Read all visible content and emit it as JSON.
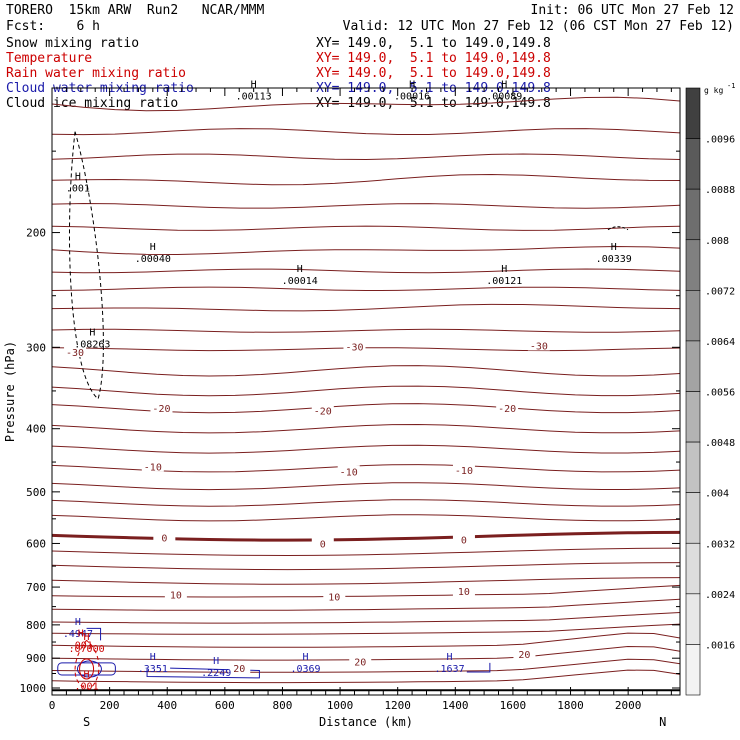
{
  "header": {
    "model": "TORERO",
    "grid": "15km ARW",
    "run": "Run2",
    "center": "NCAR/MMM",
    "init": "Init: 06 UTC Mon 27 Feb 12",
    "fcst_label": "Fcst:",
    "fcst_value": "6 h",
    "valid": "Valid: 12 UTC Mon 27 Feb 12 (06 CST Mon 27 Feb 12)"
  },
  "fields": [
    {
      "name": "Snow mixing ratio",
      "xy": "XY= 149.0,  5.1 to 149.0,149.8",
      "color": "#000000"
    },
    {
      "name": "Temperature",
      "xy": "XY= 149.0,  5.1 to 149.0,149.8",
      "color": "#cc0000"
    },
    {
      "name": "Rain water mixing ratio",
      "xy": "XY= 149.0,  5.1 to 149.0,149.8",
      "color": "#cc0000"
    },
    {
      "name": "Cloud water mixing ratio",
      "xy": "XY= 149.0,  5.1 to 149.0,149.8",
      "color": "#1a1aaa"
    },
    {
      "name": "Cloud ice mixing ratio",
      "xy": "XY= 149.0,  5.1 to 149.0,149.8",
      "color": "#000000"
    }
  ],
  "chart_data": {
    "type": "contour-cross-section",
    "xlabel": "Distance (km)",
    "ylabel": "Pressure (hPa)",
    "xlim": [
      0,
      2180
    ],
    "ylim": [
      1025,
      120
    ],
    "x_ticks": [
      0,
      200,
      400,
      600,
      800,
      1000,
      1200,
      1400,
      1600,
      1800,
      2000
    ],
    "y_ticks": [
      200,
      300,
      400,
      500,
      600,
      700,
      800,
      900,
      1000
    ],
    "endpoints": {
      "left": "S",
      "right": "N"
    },
    "colorbar": {
      "unit": "g kg",
      "unit_exp": "-1",
      "labels": [
        ".0096",
        ".0088",
        ".008",
        ".0072",
        ".0064",
        ".0056",
        ".0048",
        ".004",
        ".0032",
        ".0024",
        ".0016"
      ],
      "shades": [
        "#404040",
        "#5a5a5a",
        "#6e6e6e",
        "#808080",
        "#929292",
        "#a3a3a3",
        "#b3b3b3",
        "#c2c2c2",
        "#d0d0d0",
        "#dddddd",
        "#e8e8e8",
        "#f3f3f3"
      ]
    },
    "temperature_contours": {
      "color": "#7a1f1f",
      "interval": 5,
      "labels": [
        {
          "text": "-30",
          "x": 80,
          "p": 305
        },
        {
          "text": "-30",
          "x": 1050,
          "p": 299
        },
        {
          "text": "-30",
          "x": 1690,
          "p": 298
        },
        {
          "text": "-20",
          "x": 380,
          "p": 372
        },
        {
          "text": "-20",
          "x": 940,
          "p": 375
        },
        {
          "text": "-20",
          "x": 1580,
          "p": 372
        },
        {
          "text": "-10",
          "x": 350,
          "p": 457
        },
        {
          "text": "-10",
          "x": 1030,
          "p": 465
        },
        {
          "text": "-10",
          "x": 1430,
          "p": 463
        },
        {
          "text": "0",
          "x": 390,
          "p": 588
        },
        {
          "text": "0",
          "x": 940,
          "p": 600
        },
        {
          "text": "0",
          "x": 1430,
          "p": 592
        },
        {
          "text": "10",
          "x": 430,
          "p": 718
        },
        {
          "text": "10",
          "x": 980,
          "p": 724
        },
        {
          "text": "10",
          "x": 1430,
          "p": 710
        },
        {
          "text": "20",
          "x": 650,
          "p": 932
        },
        {
          "text": "20",
          "x": 1070,
          "p": 910
        },
        {
          "text": "20",
          "x": 1640,
          "p": 886
        }
      ]
    },
    "mixing_ratio_maxima": [
      {
        "text": ".00040",
        "x": 350,
        "p": 222,
        "color": "#000000"
      },
      {
        "text": ".00014",
        "x": 860,
        "p": 240,
        "color": "#000000"
      },
      {
        "text": ".00121",
        "x": 1570,
        "p": 240,
        "color": "#000000"
      },
      {
        "text": ".00339",
        "x": 1950,
        "p": 222,
        "color": "#000000"
      },
      {
        "text": ".001",
        "x": 90,
        "p": 173,
        "color": "#000000"
      },
      {
        "text": ".08263",
        "x": 140,
        "p": 300,
        "color": "#000000"
      },
      {
        "text": ".00113",
        "x": 700,
        "p": 125,
        "color": "#000000"
      },
      {
        "text": ".00016",
        "x": 1250,
        "p": 125,
        "color": "#000000"
      },
      {
        "text": ".00089",
        "x": 1570,
        "p": 125,
        "color": "#000000"
      },
      {
        "text": ".4947",
        "x": 90,
        "p": 835,
        "color": "#1a1aaa"
      },
      {
        "text": ".3351",
        "x": 350,
        "p": 945,
        "color": "#1a1aaa"
      },
      {
        "text": ".2249",
        "x": 570,
        "p": 958,
        "color": "#1a1aaa"
      },
      {
        "text": ".0369",
        "x": 880,
        "p": 945,
        "color": "#1a1aaa"
      },
      {
        "text": ".1637",
        "x": 1380,
        "p": 945,
        "color": "#1a1aaa"
      },
      {
        "text": ".07000",
        "x": 120,
        "p": 880,
        "color": "#cc0000"
      },
      {
        "text": ".001",
        "x": 120,
        "p": 1005,
        "color": "#cc0000"
      },
      {
        "text": ".001",
        "x": 100,
        "p": 870,
        "color": "#cc0000"
      }
    ]
  }
}
